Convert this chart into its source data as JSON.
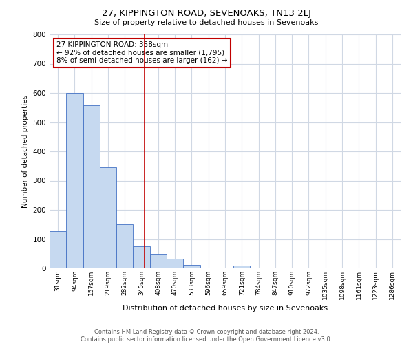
{
  "title": "27, KIPPINGTON ROAD, SEVENOAKS, TN13 2LJ",
  "subtitle": "Size of property relative to detached houses in Sevenoaks",
  "xlabel": "Distribution of detached houses by size in Sevenoaks",
  "ylabel": "Number of detached properties",
  "bin_labels": [
    "31sqm",
    "94sqm",
    "157sqm",
    "219sqm",
    "282sqm",
    "345sqm",
    "408sqm",
    "470sqm",
    "533sqm",
    "596sqm",
    "659sqm",
    "721sqm",
    "784sqm",
    "847sqm",
    "910sqm",
    "972sqm",
    "1035sqm",
    "1098sqm",
    "1161sqm",
    "1223sqm",
    "1286sqm"
  ],
  "bar_values": [
    128,
    600,
    557,
    347,
    150,
    75,
    50,
    33,
    12,
    0,
    0,
    10,
    0,
    0,
    0,
    0,
    0,
    0,
    0,
    0,
    0
  ],
  "bar_color": "#c6d9f0",
  "bar_edge_color": "#4472c4",
  "property_line_color": "#c00000",
  "annotation_title": "27 KIPPINGTON ROAD: 358sqm",
  "annotation_line1": "← 92% of detached houses are smaller (1,795)",
  "annotation_line2": "8% of semi-detached houses are larger (162) →",
  "annotation_box_color": "#c00000",
  "ylim": [
    0,
    800
  ],
  "yticks": [
    0,
    100,
    200,
    300,
    400,
    500,
    600,
    700,
    800
  ],
  "footer_line1": "Contains HM Land Registry data © Crown copyright and database right 2024.",
  "footer_line2": "Contains public sector information licensed under the Open Government Licence v3.0.",
  "bg_color": "#ffffff",
  "grid_color": "#d0d8e4"
}
